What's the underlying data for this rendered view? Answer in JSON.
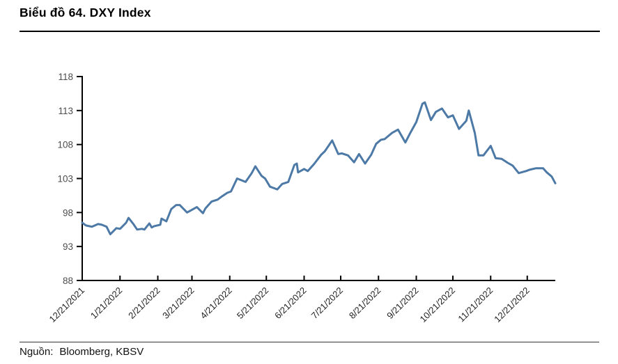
{
  "header": {
    "title": "Biểu đồ 64. DXY Index"
  },
  "footer": {
    "label": "Nguồn:",
    "source": "Bloomberg, KBSV"
  },
  "chart_data": {
    "type": "line",
    "title": "Biểu đồ 64. DXY Index",
    "xlabel": "",
    "ylabel": "",
    "ylim": [
      88,
      118
    ],
    "yticks": [
      88,
      93,
      98,
      103,
      108,
      113,
      118
    ],
    "xtick_labels": [
      "12/21/2021",
      "1/21/2022",
      "2/21/2022",
      "3/21/2022",
      "4/21/2022",
      "5/21/2022",
      "6/21/2022",
      "7/21/2022",
      "8/21/2022",
      "9/21/2022",
      "10/21/2022",
      "11/21/2022",
      "12/21/2022"
    ],
    "x_range": [
      "2021-12-21",
      "2023-01-13"
    ],
    "grid": false,
    "legend": false,
    "line_color": "#4d79a6",
    "axis_color": "#000000",
    "y_label_color": "#4d4d4d",
    "x_label_color": "#1f1f1f",
    "series": [
      {
        "name": "DXY Index",
        "x": [
          "2021-12-21",
          "2021-12-24",
          "2021-12-29",
          "2022-01-03",
          "2022-01-06",
          "2022-01-10",
          "2022-01-13",
          "2022-01-18",
          "2022-01-21",
          "2022-01-26",
          "2022-01-28",
          "2022-02-01",
          "2022-02-04",
          "2022-02-08",
          "2022-02-10",
          "2022-02-14",
          "2022-02-16",
          "2022-02-18",
          "2022-02-23",
          "2022-02-24",
          "2022-02-28",
          "2022-03-04",
          "2022-03-08",
          "2022-03-11",
          "2022-03-17",
          "2022-03-22",
          "2022-03-25",
          "2022-03-30",
          "2022-04-01",
          "2022-04-06",
          "2022-04-11",
          "2022-04-14",
          "2022-04-19",
          "2022-04-22",
          "2022-04-27",
          "2022-05-04",
          "2022-05-09",
          "2022-05-12",
          "2022-05-17",
          "2022-05-20",
          "2022-05-24",
          "2022-05-30",
          "2022-06-03",
          "2022-06-08",
          "2022-06-13",
          "2022-06-15",
          "2022-06-16",
          "2022-06-21",
          "2022-06-24",
          "2022-06-29",
          "2022-07-05",
          "2022-07-08",
          "2022-07-14",
          "2022-07-19",
          "2022-07-22",
          "2022-07-27",
          "2022-08-01",
          "2022-08-05",
          "2022-08-10",
          "2022-08-15",
          "2022-08-19",
          "2022-08-23",
          "2022-08-26",
          "2022-09-01",
          "2022-09-06",
          "2022-09-12",
          "2022-09-16",
          "2022-09-21",
          "2022-09-26",
          "2022-09-28",
          "2022-10-03",
          "2022-10-07",
          "2022-10-12",
          "2022-10-17",
          "2022-10-21",
          "2022-10-26",
          "2022-11-01",
          "2022-11-03",
          "2022-11-08",
          "2022-11-11",
          "2022-11-15",
          "2022-11-21",
          "2022-11-25",
          "2022-11-30",
          "2022-12-05",
          "2022-12-09",
          "2022-12-14",
          "2022-12-20",
          "2022-12-23",
          "2022-12-28",
          "2023-01-03",
          "2023-01-06",
          "2023-01-10",
          "2023-01-13"
        ],
        "y": [
          96.5,
          96.1,
          95.9,
          96.3,
          96.2,
          95.9,
          94.8,
          95.7,
          95.6,
          96.5,
          97.2,
          96.3,
          95.5,
          95.6,
          95.5,
          96.4,
          95.8,
          96.0,
          96.2,
          97.1,
          96.7,
          98.5,
          99.1,
          99.1,
          98.0,
          98.5,
          98.8,
          97.9,
          98.6,
          99.6,
          99.9,
          100.3,
          100.9,
          101.1,
          103.0,
          102.5,
          103.8,
          104.8,
          103.4,
          103.0,
          101.8,
          101.4,
          102.2,
          102.5,
          105.0,
          105.2,
          103.9,
          104.4,
          104.1,
          105.1,
          106.5,
          107.0,
          108.6,
          106.6,
          106.7,
          106.4,
          105.4,
          106.6,
          105.2,
          106.5,
          108.1,
          108.7,
          108.8,
          109.7,
          110.2,
          108.3,
          109.7,
          111.3,
          114.0,
          114.2,
          111.6,
          112.8,
          113.3,
          112.0,
          112.3,
          110.3,
          111.5,
          113.0,
          109.7,
          106.4,
          106.4,
          107.8,
          106.0,
          105.9,
          105.3,
          104.9,
          103.8,
          104.1,
          104.3,
          104.5,
          104.5,
          103.9,
          103.3,
          102.3
        ]
      }
    ]
  }
}
